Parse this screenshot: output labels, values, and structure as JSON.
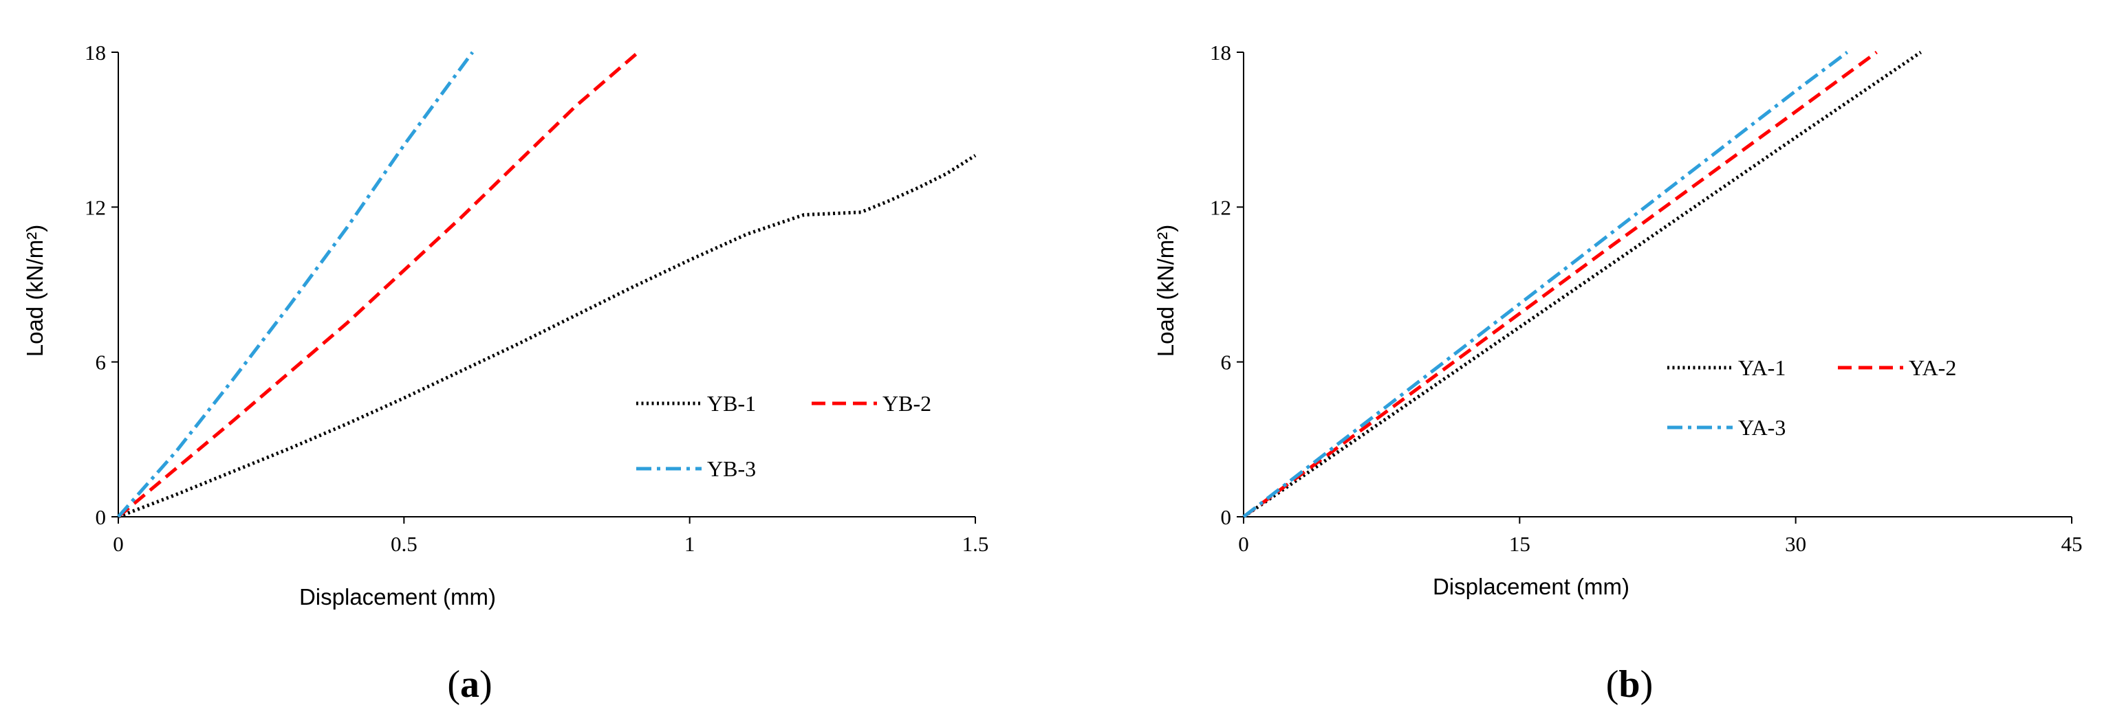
{
  "chart_data": [
    {
      "type": "line",
      "panel_label": "a",
      "xlabel": "Displacement (mm)",
      "ylabel": "Load (kN/m²)",
      "xlim": [
        0,
        1.5
      ],
      "ylim": [
        0,
        18
      ],
      "xticks": [
        0,
        0.5,
        1,
        1.5
      ],
      "xtick_labels": [
        "0",
        "0.5",
        "1",
        "1.5"
      ],
      "yticks": [
        0,
        6,
        12,
        18
      ],
      "ytick_labels": [
        "0",
        "6",
        "12",
        "18"
      ],
      "grid": false,
      "legend_position": "center-right",
      "series": [
        {
          "name": "YB-1",
          "color": "#000000",
          "dash": "dotted",
          "x": [
            0,
            0.1,
            0.2,
            0.3,
            0.4,
            0.5,
            0.6,
            0.7,
            0.8,
            0.9,
            1.0,
            1.1,
            1.2,
            1.25,
            1.3,
            1.35,
            1.4,
            1.45,
            1.5
          ],
          "y": [
            0,
            0.85,
            1.75,
            2.65,
            3.6,
            4.6,
            5.65,
            6.7,
            7.8,
            8.9,
            9.95,
            10.95,
            11.7,
            11.75,
            11.8,
            12.25,
            12.75,
            13.3,
            14.0
          ]
        },
        {
          "name": "YB-2",
          "color": "#ff0000",
          "dash": "dashed",
          "x": [
            0,
            0.2,
            0.4,
            0.6,
            0.8,
            0.91
          ],
          "y": [
            0,
            3.7,
            7.5,
            11.6,
            15.9,
            18
          ]
        },
        {
          "name": "YB-3",
          "color": "#2e9fdb",
          "dash": "dashdot",
          "x": [
            0,
            0.1,
            0.2,
            0.3,
            0.4,
            0.5,
            0.62
          ],
          "y": [
            0,
            2.5,
            5.3,
            8.2,
            11.2,
            14.4,
            18
          ]
        }
      ]
    },
    {
      "type": "line",
      "panel_label": "b",
      "xlabel": "Displacement (mm)",
      "ylabel": "Load (kN/m²)",
      "xlim": [
        0,
        45
      ],
      "ylim": [
        0,
        18
      ],
      "xticks": [
        0,
        15,
        30,
        45
      ],
      "xtick_labels": [
        "0",
        "15",
        "30",
        "45"
      ],
      "yticks": [
        0,
        6,
        12,
        18
      ],
      "ytick_labels": [
        "0",
        "6",
        "12",
        "18"
      ],
      "grid": false,
      "legend_position": "center-right",
      "series": [
        {
          "name": "YA-1",
          "color": "#000000",
          "dash": "dotted",
          "x": [
            0,
            10,
            20,
            30,
            36.8
          ],
          "y": [
            0,
            4.9,
            9.8,
            14.7,
            18
          ]
        },
        {
          "name": "YA-2",
          "color": "#ff0000",
          "dash": "dashed",
          "x": [
            0,
            10,
            20,
            30,
            34.4
          ],
          "y": [
            0,
            5.25,
            10.5,
            15.7,
            18
          ]
        },
        {
          "name": "YA-3",
          "color": "#2e9fdb",
          "dash": "dashdot",
          "x": [
            0,
            10,
            20,
            30,
            32.8
          ],
          "y": [
            0,
            5.5,
            11.0,
            16.5,
            18
          ]
        }
      ]
    }
  ]
}
